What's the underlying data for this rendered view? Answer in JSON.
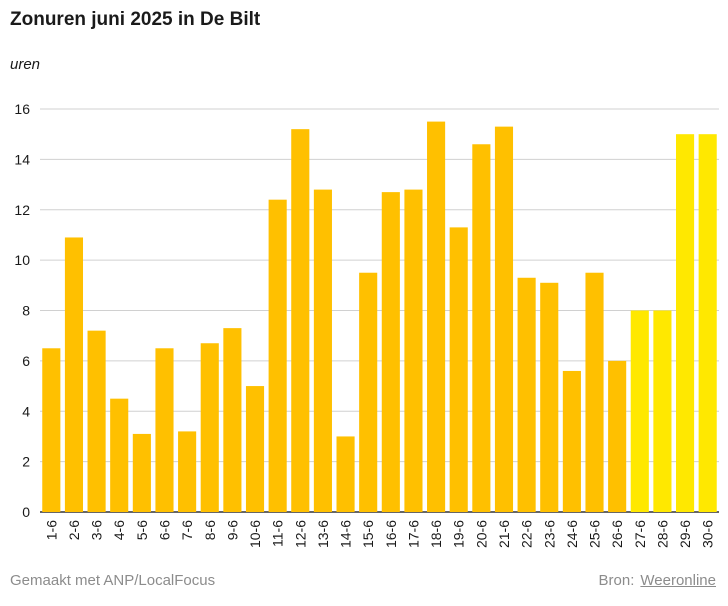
{
  "chart_data": {
    "type": "bar",
    "title": "Zonuren juni 2025 in De Bilt",
    "ylabel": "uren",
    "xlabel": "",
    "ylim": [
      0,
      16
    ],
    "yticks": [
      0,
      2,
      4,
      6,
      8,
      10,
      12,
      14,
      16
    ],
    "grid": true,
    "categories": [
      "1-6",
      "2-6",
      "3-6",
      "4-6",
      "5-6",
      "6-6",
      "7-6",
      "8-6",
      "9-6",
      "10-6",
      "11-6",
      "12-6",
      "13-6",
      "14-6",
      "15-6",
      "16-6",
      "17-6",
      "18-6",
      "19-6",
      "20-6",
      "21-6",
      "22-6",
      "23-6",
      "24-6",
      "25-6",
      "26-6",
      "27-6",
      "28-6",
      "29-6",
      "30-6"
    ],
    "values": [
      6.5,
      10.9,
      7.2,
      4.5,
      3.1,
      6.5,
      3.2,
      6.7,
      7.3,
      5.0,
      12.4,
      15.2,
      12.8,
      3.0,
      9.5,
      12.7,
      12.8,
      15.5,
      11.3,
      14.6,
      15.3,
      9.3,
      9.1,
      5.6,
      9.5,
      6.0,
      8.0,
      8.0,
      15.0,
      15.0
    ],
    "colors": {
      "measured": "#FFC000",
      "forecast": "#FFE800"
    },
    "forecast_from_index": 26
  },
  "footer": {
    "made_with": "Gemaakt met ANP/LocalFocus",
    "source_label": "Bron:",
    "source_name": "Weeronline"
  }
}
